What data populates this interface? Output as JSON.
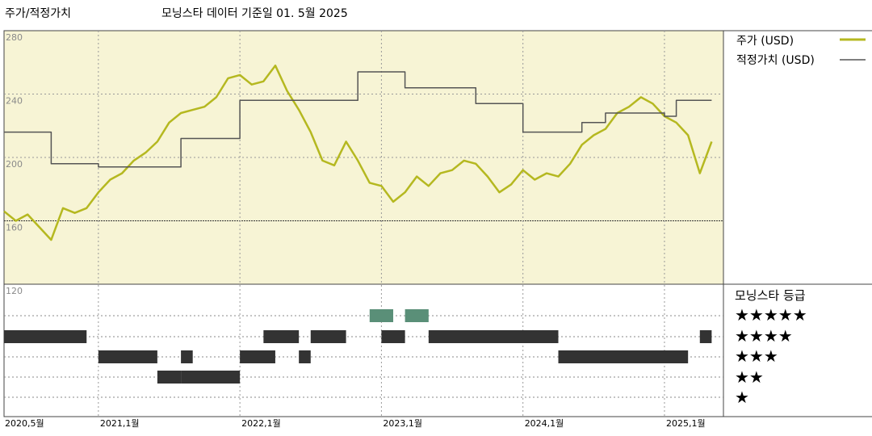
{
  "header": {
    "section_title": "주가/적정가치",
    "subtitle": "모닝스타 데이터 기준일 01. 5월 2025"
  },
  "legend": {
    "price_label": "주가 (USD)",
    "fair_value_label": "적정가치 (USD)",
    "rating_title": "모닝스타 등급",
    "stars": [
      "★★★★★",
      "★★★★",
      "★★★",
      "★★",
      "★"
    ]
  },
  "colors": {
    "price_line": "#b5b820",
    "fair_value_line": "#555555",
    "plot_bg": "#f7f4d5",
    "five_star": "#5a8f78",
    "rating_bar": "#333333"
  },
  "chart_data": {
    "type": "line",
    "ylim": [
      120,
      280
    ],
    "y_ticks": [
      120,
      160,
      200,
      240,
      280
    ],
    "x_range": [
      "2020-05",
      "2025-06"
    ],
    "x_ticks": [
      {
        "label": "2020,5월",
        "date": "2020-05"
      },
      {
        "label": "2021,1월",
        "date": "2021-01"
      },
      {
        "label": "2022,1월",
        "date": "2022-01"
      },
      {
        "label": "2023,1월",
        "date": "2023-01"
      },
      {
        "label": "2024,1월",
        "date": "2024-01"
      },
      {
        "label": "2025,1월",
        "date": "2025-01"
      }
    ],
    "series": [
      {
        "name": "주가 (USD)",
        "points": [
          [
            "2020-05",
            166
          ],
          [
            "2020-06",
            160
          ],
          [
            "2020-07",
            164
          ],
          [
            "2020-08",
            156
          ],
          [
            "2020-09",
            148
          ],
          [
            "2020-10",
            168
          ],
          [
            "2020-11",
            165
          ],
          [
            "2020-12",
            168
          ],
          [
            "2021-01",
            178
          ],
          [
            "2021-02",
            186
          ],
          [
            "2021-03",
            190
          ],
          [
            "2021-04",
            198
          ],
          [
            "2021-05",
            203
          ],
          [
            "2021-06",
            210
          ],
          [
            "2021-07",
            222
          ],
          [
            "2021-08",
            228
          ],
          [
            "2021-09",
            230
          ],
          [
            "2021-10",
            232
          ],
          [
            "2021-11",
            238
          ],
          [
            "2021-12",
            250
          ],
          [
            "2022-01",
            252
          ],
          [
            "2022-02",
            246
          ],
          [
            "2022-03",
            248
          ],
          [
            "2022-04",
            258
          ],
          [
            "2022-05",
            242
          ],
          [
            "2022-06",
            230
          ],
          [
            "2022-07",
            216
          ],
          [
            "2022-08",
            198
          ],
          [
            "2022-09",
            195
          ],
          [
            "2022-10",
            210
          ],
          [
            "2022-11",
            198
          ],
          [
            "2022-12",
            184
          ],
          [
            "2023-01",
            182
          ],
          [
            "2023-02",
            172
          ],
          [
            "2023-03",
            178
          ],
          [
            "2023-04",
            188
          ],
          [
            "2023-05",
            182
          ],
          [
            "2023-06",
            190
          ],
          [
            "2023-07",
            192
          ],
          [
            "2023-08",
            198
          ],
          [
            "2023-09",
            196
          ],
          [
            "2023-10",
            188
          ],
          [
            "2023-11",
            178
          ],
          [
            "2023-12",
            183
          ],
          [
            "2024-01",
            192
          ],
          [
            "2024-02",
            186
          ],
          [
            "2024-03",
            190
          ],
          [
            "2024-04",
            188
          ],
          [
            "2024-05",
            196
          ],
          [
            "2024-06",
            208
          ],
          [
            "2024-07",
            214
          ],
          [
            "2024-08",
            218
          ],
          [
            "2024-09",
            228
          ],
          [
            "2024-10",
            232
          ],
          [
            "2024-11",
            238
          ],
          [
            "2024-12",
            234
          ],
          [
            "2025-01",
            226
          ],
          [
            "2025-02",
            222
          ],
          [
            "2025-03",
            214
          ],
          [
            "2025-04",
            190
          ],
          [
            "2025-05",
            210
          ]
        ]
      },
      {
        "name": "적정가치 (USD)",
        "points": [
          [
            "2020-05",
            216
          ],
          [
            "2020-09",
            216
          ],
          [
            "2020-09",
            196
          ],
          [
            "2021-01",
            196
          ],
          [
            "2021-01",
            194
          ],
          [
            "2021-08",
            194
          ],
          [
            "2021-08",
            212
          ],
          [
            "2022-01",
            212
          ],
          [
            "2022-01",
            236
          ],
          [
            "2022-11",
            236
          ],
          [
            "2022-11",
            254
          ],
          [
            "2023-03",
            254
          ],
          [
            "2023-03",
            244
          ],
          [
            "2023-09",
            244
          ],
          [
            "2023-09",
            234
          ],
          [
            "2024-01",
            234
          ],
          [
            "2024-01",
            216
          ],
          [
            "2024-06",
            216
          ],
          [
            "2024-06",
            222
          ],
          [
            "2024-08",
            222
          ],
          [
            "2024-08",
            228
          ],
          [
            "2025-01",
            228
          ],
          [
            "2025-01",
            226
          ],
          [
            "2025-02",
            226
          ],
          [
            "2025-02",
            236
          ],
          [
            "2025-05",
            236
          ]
        ]
      }
    ],
    "star_rating_periods": [
      {
        "stars": 5,
        "ranges": [
          [
            "2022-12",
            "2023-02"
          ],
          [
            "2023-03",
            "2023-05"
          ]
        ]
      },
      {
        "stars": 4,
        "ranges": [
          [
            "2020-05",
            "2020-12"
          ],
          [
            "2022-03",
            "2022-06"
          ],
          [
            "2022-07",
            "2022-10"
          ],
          [
            "2023-01",
            "2023-03"
          ],
          [
            "2023-05",
            "2024-04"
          ],
          [
            "2025-04",
            "2025-05"
          ]
        ]
      },
      {
        "stars": 3,
        "ranges": [
          [
            "2021-01",
            "2021-06"
          ],
          [
            "2021-08",
            "2021-09"
          ],
          [
            "2022-01",
            "2022-04"
          ],
          [
            "2022-06",
            "2022-07"
          ],
          [
            "2024-04",
            "2025-03"
          ]
        ]
      },
      {
        "stars": 2,
        "ranges": [
          [
            "2021-06",
            "2021-08"
          ],
          [
            "2021-08",
            "2022-01"
          ]
        ]
      },
      {
        "stars": 1,
        "ranges": []
      }
    ]
  }
}
